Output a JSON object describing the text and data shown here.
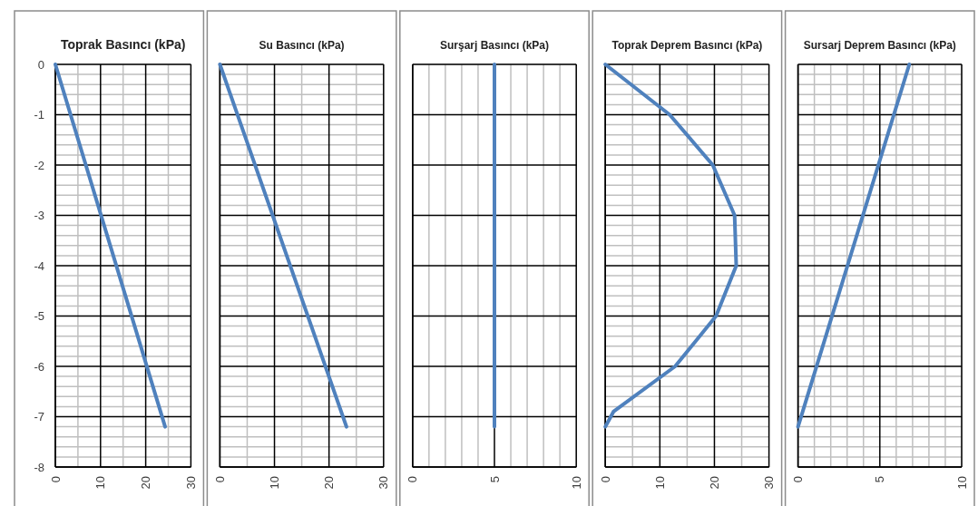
{
  "chart_data": [
    {
      "type": "line",
      "title": "Toprak Basıncı (kPa)",
      "x": [
        0,
        24.3
      ],
      "series": [
        {
          "color": "#4f81bd",
          "values": [
            0,
            -7.2
          ]
        }
      ],
      "xlim": [
        0,
        30
      ],
      "xticks": [
        0,
        {
          "value": 5,
          "label": null
        },
        10,
        {
          "value": 15,
          "label": null
        },
        20,
        {
          "value": 25,
          "label": null
        },
        30
      ],
      "ylim": [
        -8,
        0
      ],
      "yticks": [
        0,
        {
          "value": -0.2,
          "label": null
        },
        {
          "value": -0.4,
          "label": null
        },
        {
          "value": -0.6,
          "label": null
        },
        {
          "value": -0.8,
          "label": null
        },
        -1,
        {
          "value": -1.2,
          "label": null
        },
        {
          "value": -1.4,
          "label": null
        },
        {
          "value": -1.6,
          "label": null
        },
        {
          "value": -1.8,
          "label": null
        },
        -2,
        {
          "value": -2.2,
          "label": null
        },
        {
          "value": -2.4,
          "label": null
        },
        {
          "value": -2.6,
          "label": null
        },
        {
          "value": -2.8,
          "label": null
        },
        -3,
        {
          "value": -3.2,
          "label": null
        },
        {
          "value": -3.4,
          "label": null
        },
        {
          "value": -3.6,
          "label": null
        },
        {
          "value": -3.8,
          "label": null
        },
        -4,
        {
          "value": -4.2,
          "label": null
        },
        {
          "value": -4.4,
          "label": null
        },
        {
          "value": -4.6,
          "label": null
        },
        {
          "value": -4.8,
          "label": null
        },
        -5,
        {
          "value": -5.2,
          "label": null
        },
        {
          "value": -5.4,
          "label": null
        },
        {
          "value": -5.6,
          "label": null
        },
        {
          "value": -5.8,
          "label": null
        },
        -6,
        {
          "value": -6.2,
          "label": null
        },
        {
          "value": -6.4,
          "label": null
        },
        {
          "value": -6.6,
          "label": null
        },
        {
          "value": -6.8,
          "label": null
        },
        -7,
        {
          "value": -7.2,
          "label": null
        },
        {
          "value": -7.4,
          "label": null
        },
        {
          "value": -7.6,
          "label": null
        },
        {
          "value": -7.8,
          "label": null
        },
        -8
      ],
      "grid": true
    },
    {
      "type": "line",
      "title": "Su Basıncı (kPa)",
      "x": [
        0,
        23.2
      ],
      "series": [
        {
          "color": "#4f81bd",
          "values": [
            0,
            -7.2
          ]
        }
      ],
      "xlim": [
        0,
        30
      ],
      "xticks": [
        0,
        {
          "value": 5,
          "label": null
        },
        10,
        {
          "value": 15,
          "label": null
        },
        20,
        {
          "value": 25,
          "label": null
        },
        30
      ],
      "ylim": [
        -8,
        0
      ],
      "yticks": [
        0,
        {
          "value": -0.2,
          "label": null
        },
        {
          "value": -0.4,
          "label": null
        },
        {
          "value": -0.6,
          "label": null
        },
        {
          "value": -0.8,
          "label": null
        },
        -1,
        {
          "value": -1.2,
          "label": null
        },
        {
          "value": -1.4,
          "label": null
        },
        {
          "value": -1.6,
          "label": null
        },
        {
          "value": -1.8,
          "label": null
        },
        -2,
        {
          "value": -2.2,
          "label": null
        },
        {
          "value": -2.4,
          "label": null
        },
        {
          "value": -2.6,
          "label": null
        },
        {
          "value": -2.8,
          "label": null
        },
        -3,
        {
          "value": -3.2,
          "label": null
        },
        {
          "value": -3.4,
          "label": null
        },
        {
          "value": -3.6,
          "label": null
        },
        {
          "value": -3.8,
          "label": null
        },
        -4,
        {
          "value": -4.2,
          "label": null
        },
        {
          "value": -4.4,
          "label": null
        },
        {
          "value": -4.6,
          "label": null
        },
        {
          "value": -4.8,
          "label": null
        },
        -5,
        {
          "value": -5.2,
          "label": null
        },
        {
          "value": -5.4,
          "label": null
        },
        {
          "value": -5.6,
          "label": null
        },
        {
          "value": -5.8,
          "label": null
        },
        -6,
        {
          "value": -6.2,
          "label": null
        },
        {
          "value": -6.4,
          "label": null
        },
        {
          "value": -6.6,
          "label": null
        },
        {
          "value": -6.8,
          "label": null
        },
        -7,
        {
          "value": -7.2,
          "label": null
        },
        {
          "value": -7.4,
          "label": null
        },
        {
          "value": -7.6,
          "label": null
        },
        {
          "value": -7.8,
          "label": null
        },
        -8
      ],
      "grid": true,
      "tick_labels": "x"
    },
    {
      "type": "line",
      "title": "Surşarj Basıncı (kPa)",
      "x": [
        5,
        5
      ],
      "series": [
        {
          "color": "#4f81bd",
          "values": [
            0,
            -7.2
          ]
        }
      ],
      "xlim": [
        0,
        10
      ],
      "xticks": [
        0,
        {
          "value": 1,
          "label": null
        },
        {
          "value": 2,
          "label": null
        },
        {
          "value": 3,
          "label": null
        },
        {
          "value": 4,
          "label": null
        },
        5,
        {
          "value": 6,
          "label": null
        },
        {
          "value": 7,
          "label": null
        },
        {
          "value": 8,
          "label": null
        },
        {
          "value": 9,
          "label": null
        },
        10
      ],
      "ylim": [
        -8,
        0
      ],
      "yticks": [
        0,
        -1,
        -2,
        -3,
        -4,
        -5,
        -6,
        -7,
        -8
      ],
      "grid": true,
      "tick_labels": "x"
    },
    {
      "type": "line",
      "title": "Toprak Deprem Basıncı (kPa)",
      "x": [
        0,
        11.8,
        19.7,
        23.7,
        24,
        20.3,
        12.8,
        1.5,
        0
      ],
      "series": [
        {
          "color": "#4f81bd",
          "values": [
            0,
            -1,
            -2,
            -3,
            -4,
            -5,
            -6,
            -6.9,
            -7.2
          ]
        }
      ],
      "xlim": [
        0,
        30
      ],
      "xticks": [
        0,
        {
          "value": 5,
          "label": null
        },
        10,
        {
          "value": 15,
          "label": null
        },
        20,
        {
          "value": 25,
          "label": null
        },
        30
      ],
      "ylim": [
        -8,
        0
      ],
      "yticks": [
        0,
        {
          "value": -0.2,
          "label": null
        },
        {
          "value": -0.4,
          "label": null
        },
        {
          "value": -0.6,
          "label": null
        },
        {
          "value": -0.8,
          "label": null
        },
        -1,
        {
          "value": -1.2,
          "label": null
        },
        {
          "value": -1.4,
          "label": null
        },
        {
          "value": -1.6,
          "label": null
        },
        {
          "value": -1.8,
          "label": null
        },
        -2,
        {
          "value": -2.2,
          "label": null
        },
        {
          "value": -2.4,
          "label": null
        },
        {
          "value": -2.6,
          "label": null
        },
        {
          "value": -2.8,
          "label": null
        },
        -3,
        {
          "value": -3.2,
          "label": null
        },
        {
          "value": -3.4,
          "label": null
        },
        {
          "value": -3.6,
          "label": null
        },
        {
          "value": -3.8,
          "label": null
        },
        -4,
        {
          "value": -4.2,
          "label": null
        },
        {
          "value": -4.4,
          "label": null
        },
        {
          "value": -4.6,
          "label": null
        },
        {
          "value": -4.8,
          "label": null
        },
        -5,
        {
          "value": -5.2,
          "label": null
        },
        {
          "value": -5.4,
          "label": null
        },
        {
          "value": -5.6,
          "label": null
        },
        {
          "value": -5.8,
          "label": null
        },
        -6,
        {
          "value": -6.2,
          "label": null
        },
        {
          "value": -6.4,
          "label": null
        },
        {
          "value": -6.6,
          "label": null
        },
        {
          "value": -6.8,
          "label": null
        },
        -7,
        {
          "value": -7.2,
          "label": null
        },
        {
          "value": -7.4,
          "label": null
        },
        {
          "value": -7.6,
          "label": null
        },
        {
          "value": -7.8,
          "label": null
        },
        -8
      ],
      "grid": true,
      "tick_labels": "x"
    },
    {
      "type": "line",
      "title": "Sursarj Deprem Basıncı (kPa)",
      "x": [
        6.8,
        0
      ],
      "series": [
        {
          "color": "#4f81bd",
          "values": [
            0,
            -7.2
          ]
        }
      ],
      "xlim": [
        0,
        10
      ],
      "xticks": [
        0,
        {
          "value": 1,
          "label": null
        },
        {
          "value": 2,
          "label": null
        },
        {
          "value": 3,
          "label": null
        },
        {
          "value": 4,
          "label": null
        },
        5,
        {
          "value": 6,
          "label": null
        },
        {
          "value": 7,
          "label": null
        },
        {
          "value": 8,
          "label": null
        },
        {
          "value": 9,
          "label": null
        },
        10
      ],
      "ylim": [
        -8,
        0
      ],
      "yticks": [
        0,
        {
          "value": -0.2,
          "label": null
        },
        {
          "value": -0.4,
          "label": null
        },
        {
          "value": -0.6,
          "label": null
        },
        {
          "value": -0.8,
          "label": null
        },
        -1,
        {
          "value": -1.2,
          "label": null
        },
        {
          "value": -1.4,
          "label": null
        },
        {
          "value": -1.6,
          "label": null
        },
        {
          "value": -1.8,
          "label": null
        },
        -2,
        {
          "value": -2.2,
          "label": null
        },
        {
          "value": -2.4,
          "label": null
        },
        {
          "value": -2.6,
          "label": null
        },
        {
          "value": -2.8,
          "label": null
        },
        -3,
        {
          "value": -3.2,
          "label": null
        },
        {
          "value": -3.4,
          "label": null
        },
        {
          "value": -3.6,
          "label": null
        },
        {
          "value": -3.8,
          "label": null
        },
        -4,
        {
          "value": -4.2,
          "label": null
        },
        {
          "value": -4.4,
          "label": null
        },
        {
          "value": -4.6,
          "label": null
        },
        {
          "value": -4.8,
          "label": null
        },
        -5,
        {
          "value": -5.2,
          "label": null
        },
        {
          "value": -5.4,
          "label": null
        },
        {
          "value": -5.6,
          "label": null
        },
        {
          "value": -5.8,
          "label": null
        },
        -6,
        {
          "value": -6.2,
          "label": null
        },
        {
          "value": -6.4,
          "label": null
        },
        {
          "value": -6.6,
          "label": null
        },
        {
          "value": -6.8,
          "label": null
        },
        -7,
        {
          "value": -7.2,
          "label": null
        },
        {
          "value": -7.4,
          "label": null
        },
        {
          "value": -7.6,
          "label": null
        },
        {
          "value": -7.8,
          "label": null
        },
        -8
      ],
      "grid": true,
      "tick_labels": "x"
    }
  ]
}
